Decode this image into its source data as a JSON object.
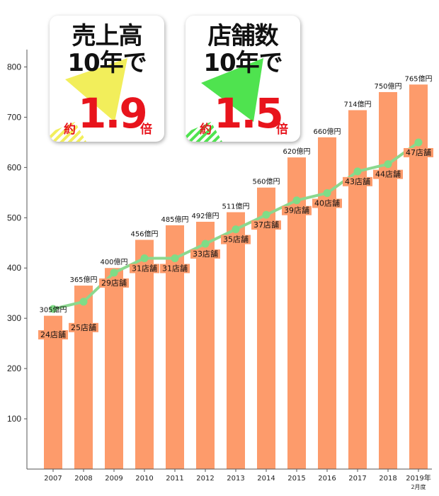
{
  "chart_data": {
    "type": "bar",
    "categories": [
      "2007",
      "2008",
      "2009",
      "2010",
      "2011",
      "2012",
      "2013",
      "2014",
      "2015",
      "2016",
      "2017",
      "2018",
      "2019年\n2月度"
    ],
    "series": [
      {
        "values": [
          305,
          365,
          400,
          456,
          485,
          492,
          511,
          560,
          620,
          660,
          714,
          750,
          765
        ],
        "labels": [
          "305億円",
          "365億円",
          "400億円",
          "456億円",
          "485億円",
          "492億円",
          "511億円",
          "560億円",
          "620億円",
          "660億円",
          "714億円",
          "750億円",
          "765億円"
        ]
      },
      {
        "values": [
          24,
          25,
          29,
          31,
          31,
          33,
          35,
          37,
          39,
          40,
          43,
          44,
          47
        ],
        "labels": [
          "24店舗",
          "25店舗",
          "29店舗",
          "31店舗",
          "31店舗",
          "33店舗",
          "35店舗",
          "37店舗",
          "39店舗",
          "40店舗",
          "43店舗",
          "44店舗",
          "47店舗"
        ]
      }
    ],
    "y_ticks": [
      100,
      200,
      300,
      400,
      500,
      600,
      700,
      800
    ],
    "ylim": [
      0,
      800
    ],
    "colors": {
      "bar": "#fd9b6b",
      "line": "#8bd88e",
      "marker": "#7fdc86"
    }
  },
  "callouts": [
    {
      "title_line1": "売上高",
      "title_line2": "10年で",
      "prefix": "約",
      "multiplier": "1.9",
      "suffix": "倍",
      "arrow_color": "#f2ee5b"
    },
    {
      "title_line1": "店舗数",
      "title_line2": "10年で",
      "prefix": "約",
      "multiplier": "1.5",
      "suffix": "倍",
      "arrow_color": "#4fe34f"
    }
  ]
}
